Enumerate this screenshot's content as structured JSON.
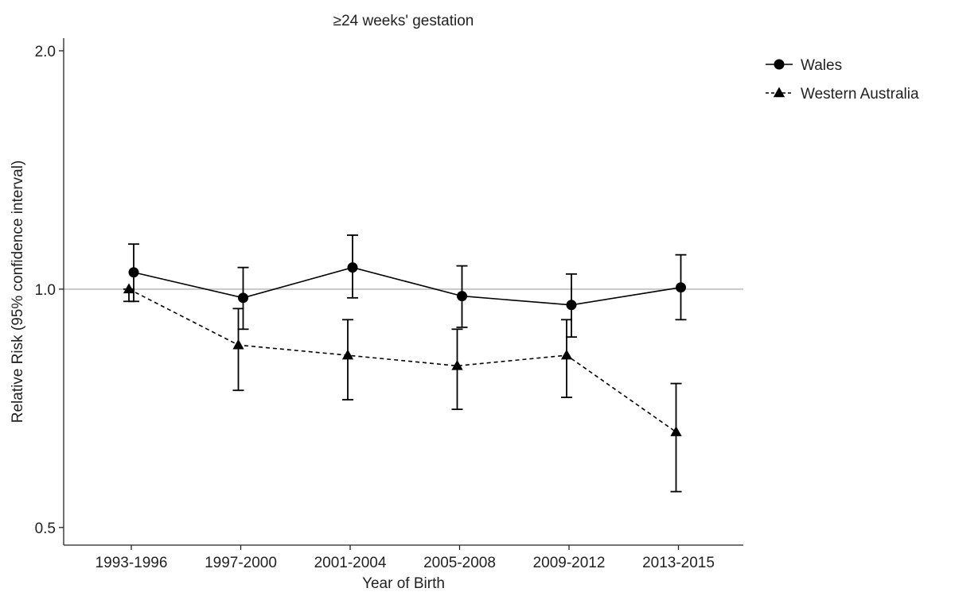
{
  "chart_data": {
    "type": "line",
    "title": "≥24  weeks' gestation",
    "xlabel": "Year of Birth",
    "ylabel": "Relative Risk (95% confidence interval)",
    "categories": [
      "1993-1996",
      "1997-2000",
      "2001-2004",
      "2005-2008",
      "2009-2012",
      "2013-2015"
    ],
    "y_scale": "log",
    "ylim": [
      0.475,
      2.075
    ],
    "yticks": [
      0.5,
      1.0,
      2.0
    ],
    "ytick_labels": [
      "0.5",
      "1.0",
      "2.0"
    ],
    "reference_line": 1.0,
    "grid": false,
    "legend_position": "top-right",
    "series": [
      {
        "name": "Wales",
        "marker": "circle",
        "line_style": "solid",
        "color": "#000000",
        "values": [
          1.05,
          0.975,
          1.065,
          0.98,
          0.955,
          1.005
        ],
        "ci_lower": [
          0.965,
          0.89,
          0.975,
          0.895,
          0.87,
          0.915
        ],
        "ci_upper": [
          1.14,
          1.065,
          1.17,
          1.07,
          1.045,
          1.105
        ]
      },
      {
        "name": "Western Australia",
        "marker": "triangle",
        "line_style": "dashed",
        "color": "#000000",
        "values": [
          1.0,
          0.85,
          0.825,
          0.8,
          0.825,
          0.66
        ],
        "ci_lower": [
          0.965,
          0.745,
          0.725,
          0.705,
          0.73,
          0.555
        ],
        "ci_upper": [
          1.0,
          0.945,
          0.915,
          0.89,
          0.915,
          0.76
        ]
      }
    ]
  }
}
